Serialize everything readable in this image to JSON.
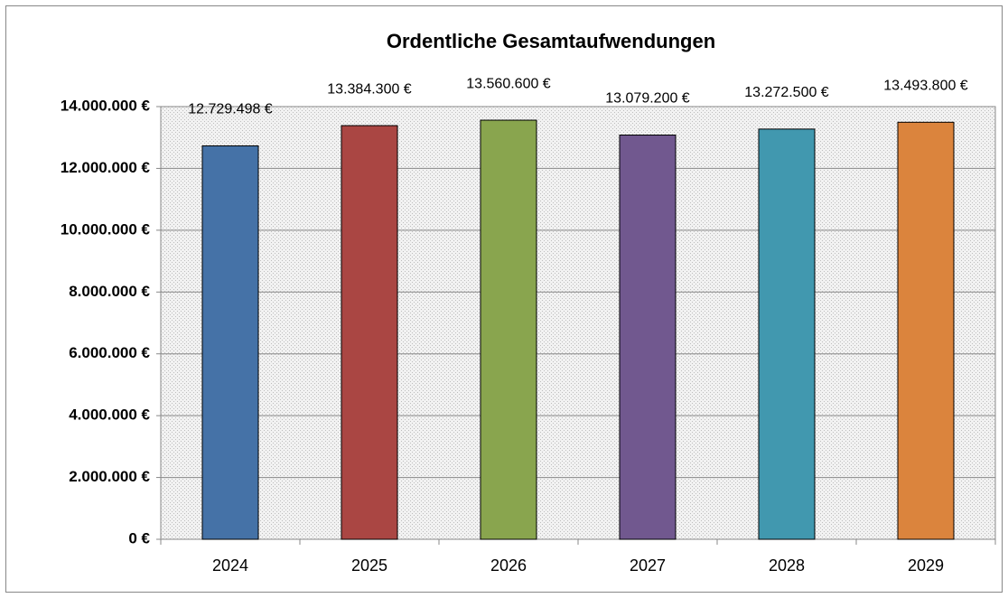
{
  "chart_data": {
    "type": "bar",
    "title": "Ordentliche Gesamtaufwendungen",
    "categories": [
      "2024",
      "2025",
      "2026",
      "2027",
      "2028",
      "2029"
    ],
    "values": [
      12729498,
      13384300,
      13560600,
      13079200,
      13272500,
      13493800
    ],
    "value_labels": [
      "12.729.498 €",
      "13.384.300 €",
      "13.560.600 €",
      "13.079.200 €",
      "13.272.500 €",
      "13.493.800 €"
    ],
    "colors": [
      "#4572a7",
      "#aa4643",
      "#89a54e",
      "#71588f",
      "#4198af",
      "#db843d"
    ],
    "ylim": [
      0,
      14000000
    ],
    "yticks": [
      {
        "value": 0,
        "label": "0 €"
      },
      {
        "value": 2000000,
        "label": "2.000.000 €"
      },
      {
        "value": 4000000,
        "label": "4.000.000 €"
      },
      {
        "value": 6000000,
        "label": "6.000.000 €"
      },
      {
        "value": 8000000,
        "label": "8.000.000 €"
      },
      {
        "value": 10000000,
        "label": "10.000.000 €"
      },
      {
        "value": 12000000,
        "label": "12.000.000 €"
      },
      {
        "value": 14000000,
        "label": "14.000.000 €"
      }
    ],
    "grid": true
  }
}
